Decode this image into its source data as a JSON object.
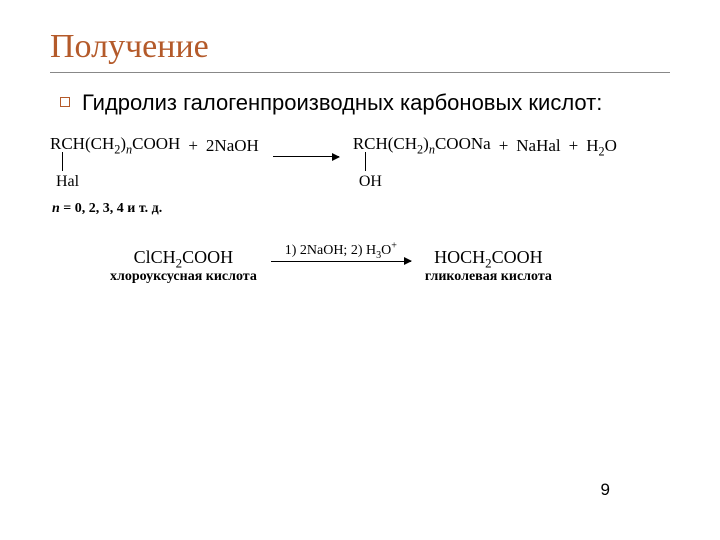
{
  "title": "Получение",
  "bullet": "Гидролиз галогенпроизводных карбоновых кислот:",
  "eq1": {
    "reactant1_main": "RCH(CH₂)ₙCOOH",
    "reactant1_sub": "Hal",
    "reagent": "2NaOH",
    "product1_main": "RCH(CH₂)ₙCOONa",
    "product1_sub": "OH",
    "product2": "NaHal",
    "product3": "H₂O",
    "note": "n = 0, 2, 3, 4 и т. д."
  },
  "eq2": {
    "left_formula": "ClCH₂COOH",
    "left_name": "хлороуксусная кислота",
    "conditions": "1) 2NaOH; 2) H₃O⁺",
    "right_formula": "HOCH₂COOH",
    "right_name": "гликолевая кислота"
  },
  "page": "9",
  "colors": {
    "accent": "#b45a2a",
    "text": "#000000",
    "rule": "#888888",
    "bg": "#ffffff"
  },
  "fonts": {
    "title_family": "Georgia",
    "title_size_pt": 26,
    "body_size_pt": 16,
    "chem_family": "Times New Roman"
  }
}
